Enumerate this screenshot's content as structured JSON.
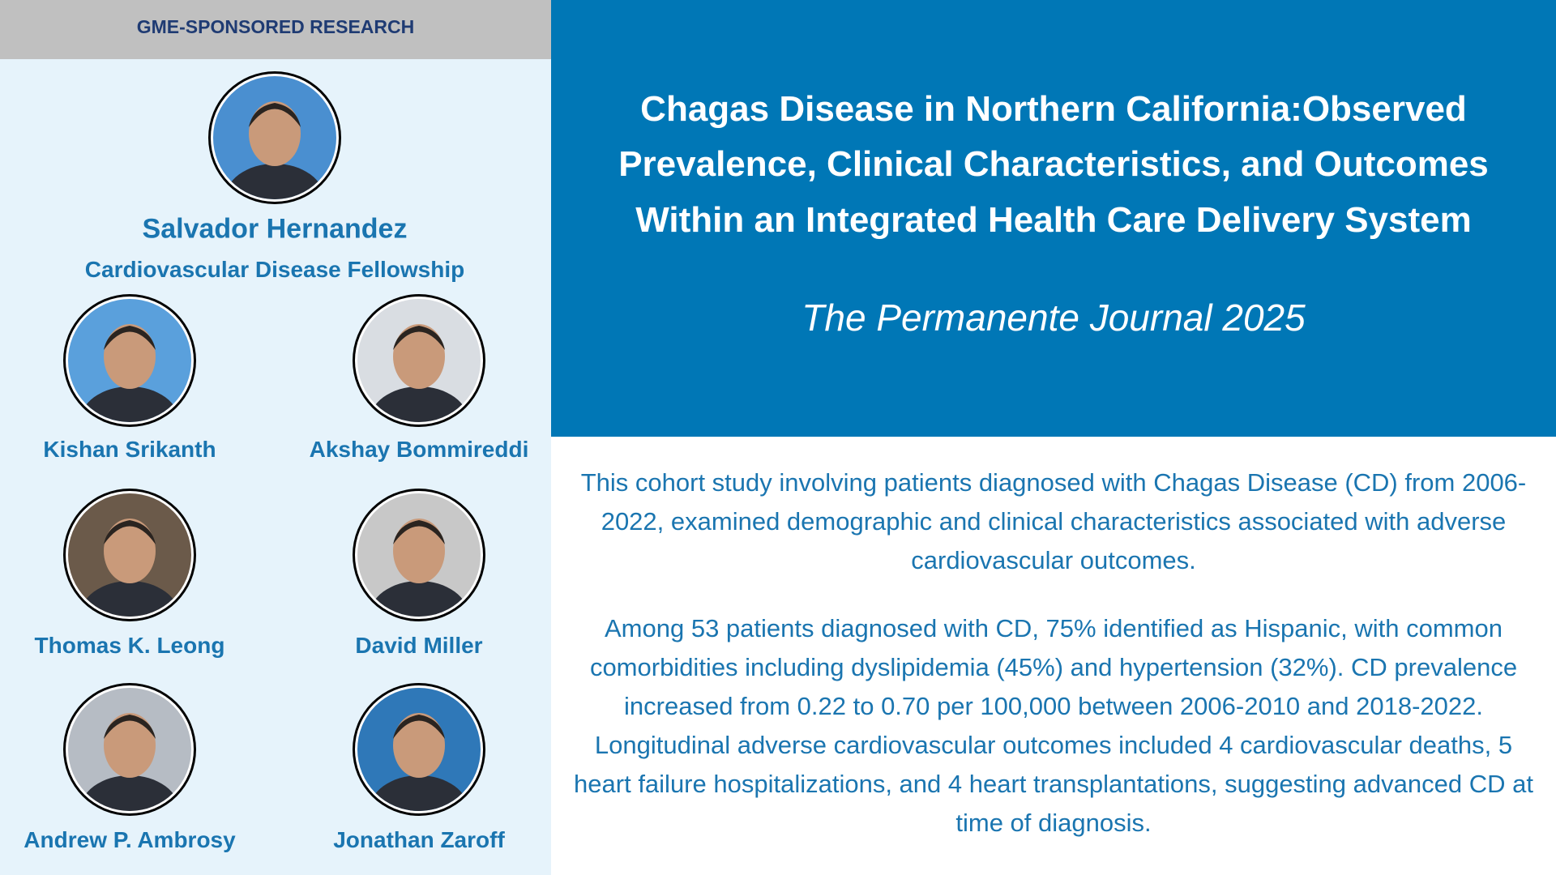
{
  "header": {
    "label": "GME-SPONSORED RESEARCH"
  },
  "lead": {
    "name": "Salvador Hernandez",
    "program": "Cardiovascular Disease Fellowship"
  },
  "authors": [
    "Kishan Srikanth",
    "Akshay Bommireddi",
    "Thomas K. Leong",
    "David Miller",
    "Andrew P. Ambrosy",
    "Jonathan Zaroff"
  ],
  "title_lines": [
    "Chagas Disease in Northern California:Observed",
    "Prevalence, Clinical Characteristics, and Outcomes",
    "Within an Integrated Health Care Delivery System"
  ],
  "journal": "The Permanente Journal 2025",
  "paragraphs": [
    "This cohort study involving patients diagnosed with Chagas Disease (CD) from 2006-2022, examined demographic and clinical characteristics associated with adverse cardiovascular outcomes.",
    "Among 53 patients diagnosed with CD, 75% identified as Hispanic, with common comorbidities including dyslipidemia (45%) and hypertension (32%). CD prevalence increased from 0.22 to 0.70 per 100,000 between 2006-2010 and 2018-2022. Longitudinal adverse cardiovascular outcomes included 4 cardiovascular deaths, 5 heart failure hospitalizations, and 4 heart transplantations, suggesting advanced CD at time of diagnosis."
  ]
}
